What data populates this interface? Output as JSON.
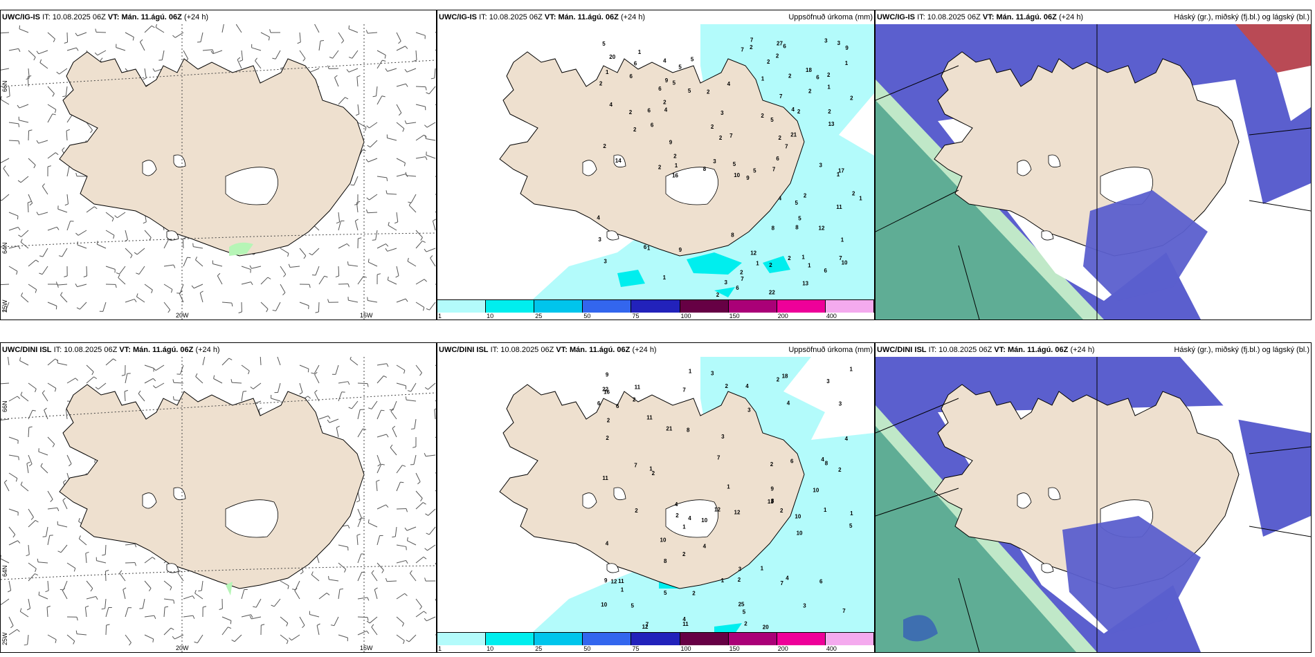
{
  "panels": {
    "top_wind": {
      "model": "UWC/IG-IS",
      "it_label": "IT:",
      "it": "10.08.2025 06Z",
      "vt_label": "VT:",
      "vt": "Mán. 11.ágú. 06Z",
      "lead": "(+24 h)",
      "right_title": ""
    },
    "top_precip": {
      "model": "UWC/IG-IS",
      "it_label": "IT:",
      "it": "10.08.2025 06Z",
      "vt_label": "VT:",
      "vt": "Mán. 11.ágú. 06Z",
      "lead": "(+24 h)",
      "right_title": "Uppsöfnuð úrkoma (mm)"
    },
    "top_cloud": {
      "model": "UWC/IG-IS",
      "it_label": "IT:",
      "it": "10.08.2025 06Z",
      "vt_label": "VT:",
      "vt": "Mán. 11.ágú. 06Z",
      "lead": "(+24 h)",
      "right_title": "Háský (gr.), miðský (fj.bl.) og lágský (bl.)"
    },
    "bot_wind": {
      "model": "UWC/DINI ISL",
      "it_label": "IT:",
      "it": "10.08.2025 06Z",
      "vt_label": "VT:",
      "vt": "Mán. 11.ágú. 06Z",
      "lead": "(+24 h)",
      "right_title": ""
    },
    "bot_precip": {
      "model": "UWC/DINI ISL",
      "it_label": "IT:",
      "it": "10.08.2025 06Z",
      "vt_label": "VT:",
      "vt": "Mán. 11.ágú. 06Z",
      "lead": "(+24 h)",
      "right_title": "Uppsöfnuð úrkoma (mm)"
    },
    "bot_cloud": {
      "model": "UWC/DINI ISL",
      "it_label": "IT:",
      "it": "10.08.2025 06Z",
      "vt_label": "VT:",
      "vt": "Mán. 11.ágú. 06Z",
      "lead": "(+24 h)",
      "right_title": "Háský (gr.), miðský (fj.bl.) og lágský (bl.)"
    }
  },
  "axis_labels": {
    "lat66": "66N",
    "lat64": "64N",
    "lon25": "25W",
    "lon20": "20W",
    "lon15": "15W"
  },
  "legend": {
    "ticks": [
      "1",
      "10",
      "25",
      "50",
      "75",
      "100",
      "150",
      "200",
      "400"
    ],
    "colors": [
      "#b3fbfb",
      "#00eeee",
      "#00c5ec",
      "#3366ee",
      "#2222bb",
      "#660044",
      "#aa0077",
      "#ee0099",
      "#f4aaee"
    ]
  },
  "colors": {
    "land": "#eee0cf",
    "ice": "#ffffff",
    "precip_light": "#b3fbfb",
    "precip_mid": "#00eeee",
    "cloud_low": "#5b5fce",
    "cloud_high": "#5fad95",
    "cloud_mid": "#c0e8c8",
    "border": "#000000"
  },
  "precip_top": {
    "values": [
      "4",
      "2",
      "2",
      "3",
      "6",
      "2",
      "4",
      "1",
      "2",
      "1",
      "2",
      "5",
      "4",
      "1",
      "2",
      "1",
      "2",
      "2",
      "6",
      "1",
      "1",
      "1",
      "2",
      "8",
      "2",
      "6",
      "1",
      "2",
      "1",
      "2",
      "4",
      "2",
      "3",
      "2",
      "1",
      "4",
      "5",
      "1",
      "2",
      "3",
      "2",
      "6",
      "2",
      "1",
      "2",
      "2",
      "2",
      "3",
      "1",
      "2",
      "3",
      "5",
      "3",
      "5",
      "4",
      "5",
      "3",
      "5",
      "2",
      "2",
      "2",
      "5",
      "2",
      "9",
      "6",
      "6",
      "10",
      "7",
      "7",
      "3",
      "5",
      "7",
      "9",
      "8",
      "2",
      "6",
      "5",
      "2",
      "12",
      "10",
      "13",
      "5",
      "7",
      "14",
      "13",
      "20",
      "12",
      "21",
      "9",
      "8",
      "18",
      "27",
      "17",
      "16",
      "22",
      "8",
      "7",
      "7",
      "7",
      "11",
      "9",
      "6",
      "6",
      "6",
      "6",
      "9",
      "7",
      "4",
      "1"
    ]
  },
  "precip_bot": {
    "values": [
      "4",
      "2",
      "1",
      "3",
      "2",
      "4",
      "1",
      "1",
      "4",
      "2",
      "1",
      "2",
      "5",
      "1",
      "2",
      "2",
      "3",
      "1",
      "1",
      "2",
      "1",
      "2",
      "10",
      "2",
      "2",
      "3",
      "1",
      "2",
      "4",
      "3",
      "2",
      "4",
      "3",
      "7",
      "11",
      "4",
      "1",
      "2",
      "7",
      "3",
      "5",
      "12",
      "2",
      "4",
      "13",
      "7",
      "11",
      "10",
      "6",
      "7",
      "16",
      "9",
      "12",
      "8",
      "10",
      "11",
      "8",
      "11",
      "10",
      "12",
      "18",
      "3",
      "6",
      "5",
      "10",
      "9",
      "5",
      "6",
      "7",
      "8",
      "10",
      "12",
      "7",
      "8",
      "4",
      "4",
      "20",
      "21",
      "25",
      "22",
      "11",
      "9",
      "6",
      "2",
      "4"
    ]
  }
}
